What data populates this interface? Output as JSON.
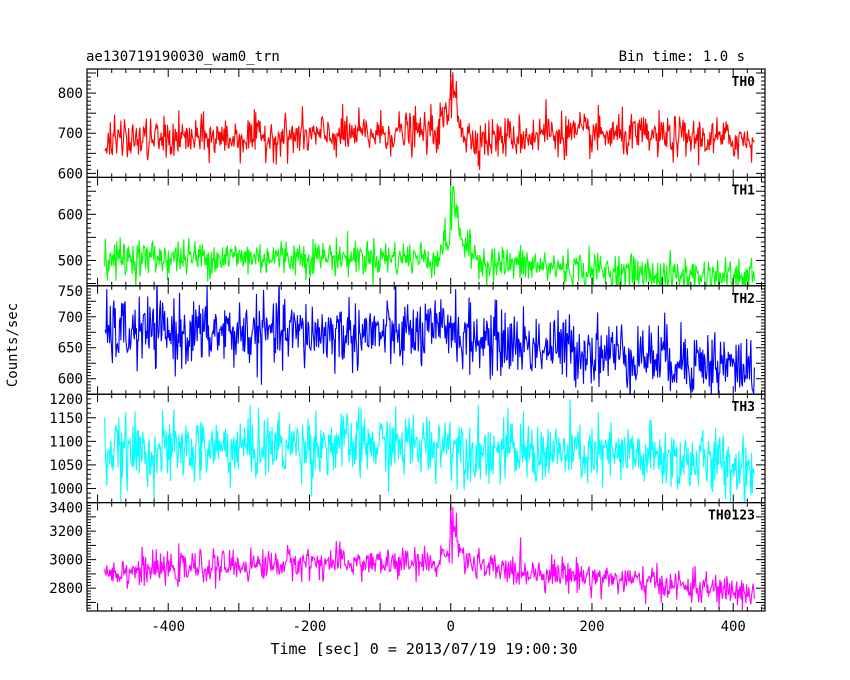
{
  "chart_data": {
    "type": "line",
    "title": "ae130719190030_wam0_trn",
    "subtitle": "Bin time: 1.0 s",
    "xlabel": "Time [sec] 0 = 2013/07/19 19:00:30",
    "ylabel": "Counts/sec",
    "xlim": [
      -515,
      445
    ],
    "x_range": [
      -490,
      430
    ],
    "x_step": 1,
    "x_ticks": [
      "-400",
      "-200",
      "0",
      "200",
      "400"
    ],
    "grid": false,
    "panels": [
      {
        "name": "TH0",
        "color": "#ff0000",
        "ylim": [
          590,
          860
        ],
        "y_ticks": [
          "600",
          "700",
          "800"
        ],
        "anchors_x": [
          -490,
          -200,
          -20,
          0,
          5,
          10,
          20,
          50,
          150,
          300,
          430
        ],
        "anchors_mean": [
          683,
          692,
          705,
          760,
          805,
          760,
          690,
          685,
          700,
          690,
          683
        ],
        "noise_sd": 26,
        "spikes": [
          [
            0,
            845
          ],
          [
            3,
            852
          ],
          [
            8,
            830
          ],
          [
            135,
            785
          ]
        ]
      },
      {
        "name": "TH1",
        "color": "#00ff00",
        "ylim": [
          445,
          680
        ],
        "y_ticks": [
          "500",
          "600"
        ],
        "anchors_x": [
          -490,
          -200,
          -20,
          0,
          5,
          10,
          20,
          50,
          150,
          300,
          430
        ],
        "anchors_mean": [
          505,
          508,
          505,
          560,
          625,
          590,
          525,
          495,
          485,
          468,
          465
        ],
        "noise_sd": 20,
        "spikes": [
          [
            0,
            665
          ],
          [
            3,
            660
          ]
        ]
      },
      {
        "name": "TH2",
        "color": "#0000ff",
        "ylim": [
          575,
          750
        ],
        "y_ticks": [
          "600",
          "650",
          "700",
          "750"
        ],
        "anchors_x": [
          -490,
          -200,
          -20,
          0,
          5,
          20,
          50,
          150,
          300,
          430
        ],
        "anchors_mean": [
          675,
          673,
          672,
          690,
          680,
          665,
          662,
          650,
          635,
          615
        ],
        "noise_sd": 28
      },
      {
        "name": "TH3",
        "color": "#00ffff",
        "ylim": [
          970,
          1200
        ],
        "y_ticks": [
          "1000",
          "1050",
          "1100",
          "1150",
          "1200"
        ],
        "anchors_x": [
          -490,
          -200,
          -20,
          0,
          5,
          20,
          50,
          150,
          300,
          430
        ],
        "anchors_mean": [
          1075,
          1092,
          1092,
          1100,
          1095,
          1085,
          1080,
          1075,
          1065,
          1045
        ],
        "noise_sd": 35
      },
      {
        "name": "TH0123",
        "color": "#ff00ff",
        "ylim": [
          2640,
          3400
        ],
        "y_ticks": [
          "2800",
          "3000",
          "3200",
          "3400"
        ],
        "anchors_x": [
          -490,
          -200,
          -20,
          0,
          5,
          10,
          20,
          50,
          150,
          300,
          430
        ],
        "anchors_mean": [
          2915,
          2980,
          2970,
          3090,
          3210,
          3120,
          2990,
          2935,
          2905,
          2830,
          2760
        ],
        "noise_sd": 55,
        "spikes": [
          [
            0,
            3390
          ],
          [
            3,
            3370
          ],
          [
            8,
            3330
          ]
        ]
      }
    ]
  }
}
